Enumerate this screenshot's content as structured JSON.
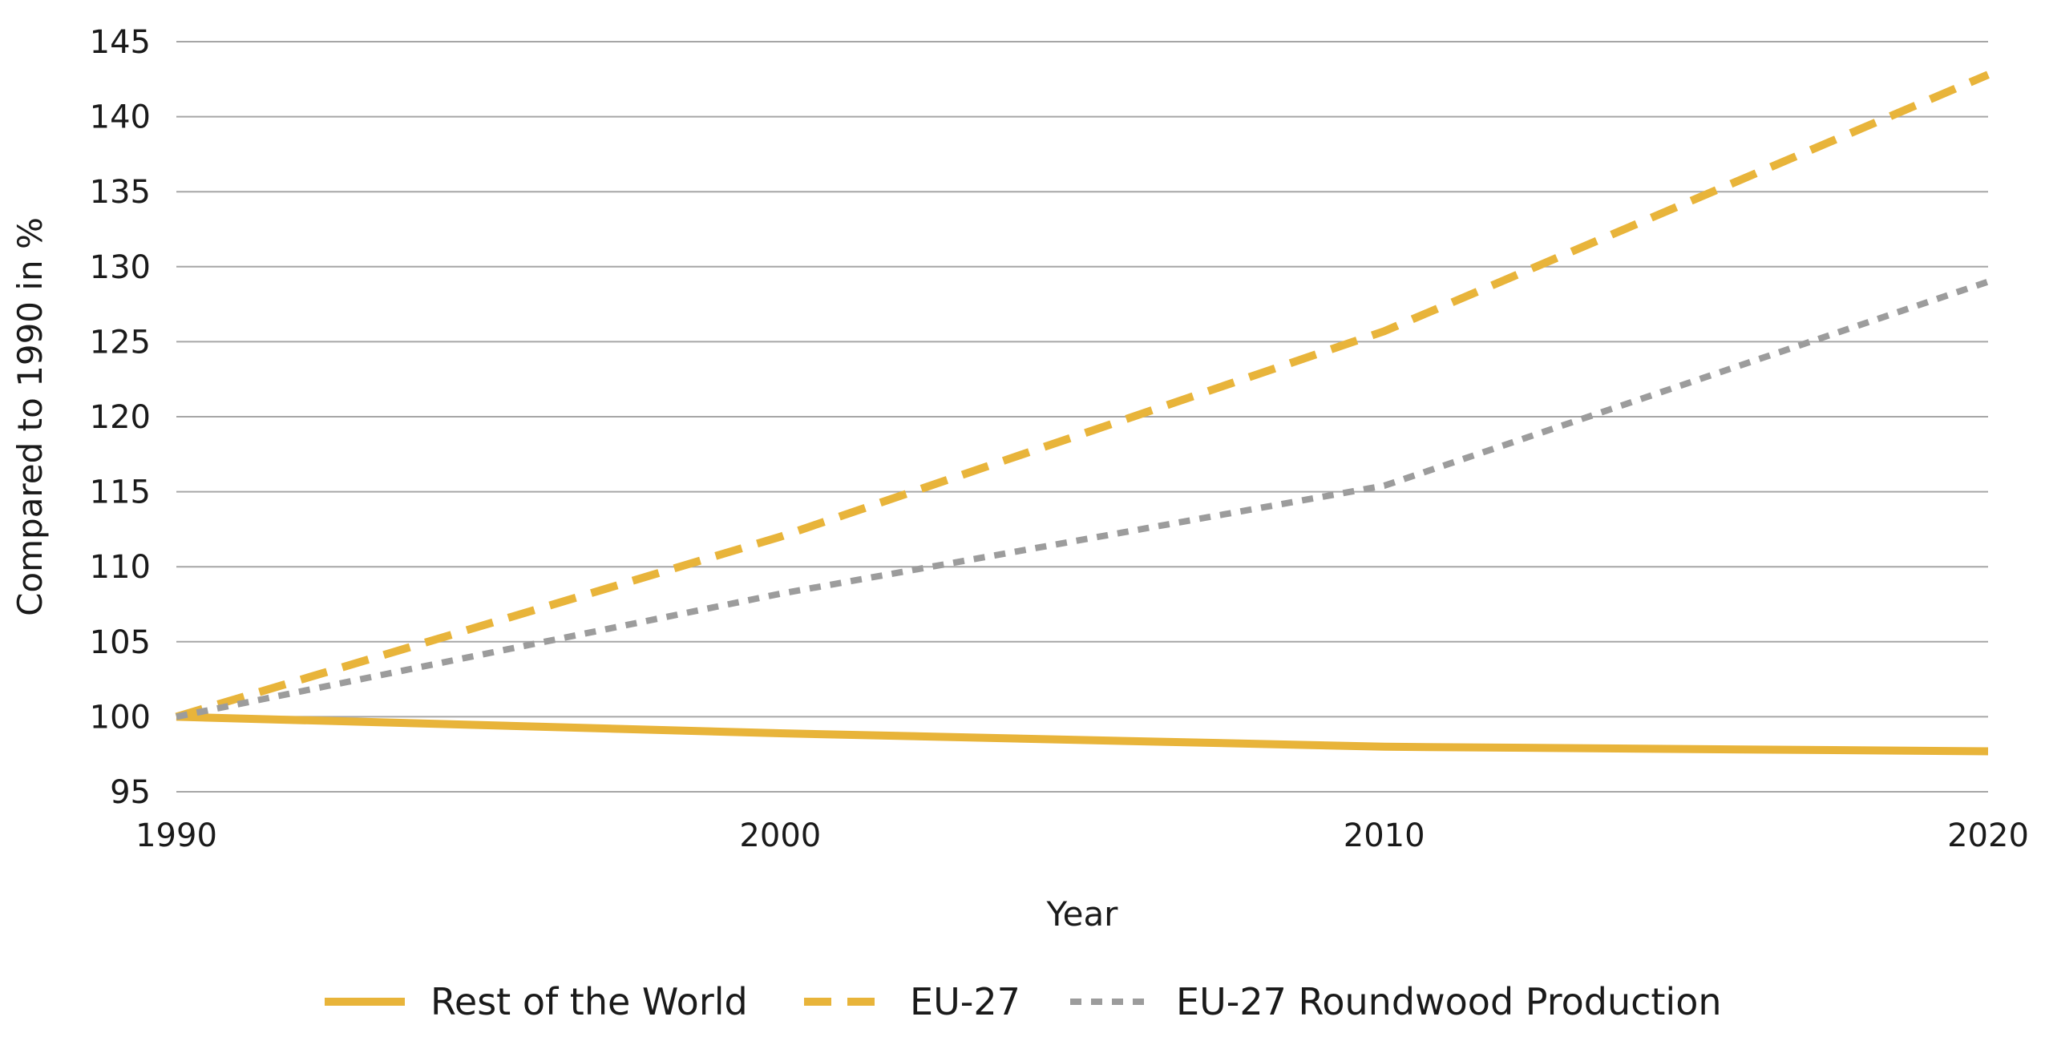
{
  "chart_data": {
    "type": "line",
    "xlabel": "Year",
    "ylabel": "Compared to 1990 in %",
    "xlim": [
      1990,
      2020
    ],
    "ylim": [
      95,
      145
    ],
    "x_ticks": [
      1990,
      2000,
      2010,
      2020
    ],
    "y_ticks": [
      95,
      100,
      105,
      110,
      115,
      120,
      125,
      130,
      135,
      140,
      145
    ],
    "grid": "horizontal",
    "legend_position": "bottom",
    "series": [
      {
        "name": "Rest of the World",
        "style": "solid",
        "color": "#E8B43A",
        "x": [
          1990,
          2000,
          2010,
          2020
        ],
        "y": [
          100.0,
          98.9,
          98.0,
          97.7
        ]
      },
      {
        "name": "EU-27",
        "style": "dashed",
        "color": "#E8B43A",
        "x": [
          1990,
          2000,
          2010,
          2020
        ],
        "y": [
          100.0,
          112.0,
          125.7,
          142.8
        ]
      },
      {
        "name": "EU-27 Roundwood Production",
        "style": "dotted",
        "color": "#9C9C9C",
        "x": [
          1990,
          2000,
          2010,
          2020
        ],
        "y": [
          100.0,
          108.2,
          115.4,
          129.0
        ]
      }
    ]
  }
}
